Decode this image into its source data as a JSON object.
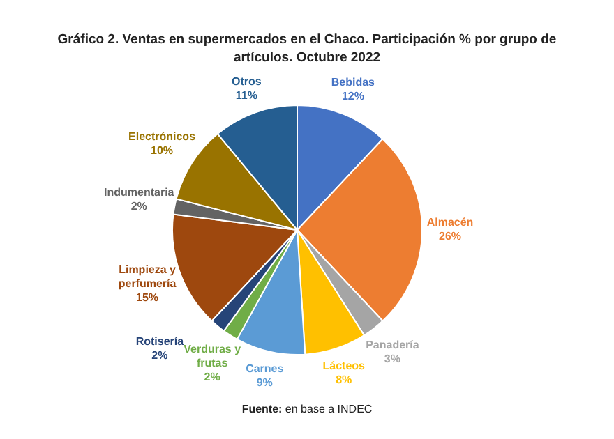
{
  "chart_data": {
    "type": "pie",
    "title": "Gráfico 2. Ventas en supermercados en el Chaco. Participación % por grupo de artículos. Octubre 2022",
    "categories": [
      "Bebidas",
      "Almacén",
      "Panadería",
      "Lácteos",
      "Carnes",
      "Verduras y frutas",
      "Rotisería",
      "Limpieza y perfumería",
      "Indumentaria",
      "Electrónicos",
      "Otros"
    ],
    "values": [
      12,
      26,
      3,
      8,
      9,
      2,
      2,
      15,
      2,
      10,
      11
    ],
    "value_labels": [
      "12%",
      "26%",
      "3%",
      "8%",
      "9%",
      "2%",
      "2%",
      "15%",
      "2%",
      "10%",
      "11%"
    ],
    "colors": [
      "#4472c4",
      "#ed7d31",
      "#a5a5a5",
      "#ffc000",
      "#5b9bd5",
      "#70ad47",
      "#264478",
      "#9e480e",
      "#636363",
      "#997300",
      "#255e91"
    ],
    "legend": false,
    "annotations": [
      "Fuente: en base a INDEC"
    ]
  }
}
